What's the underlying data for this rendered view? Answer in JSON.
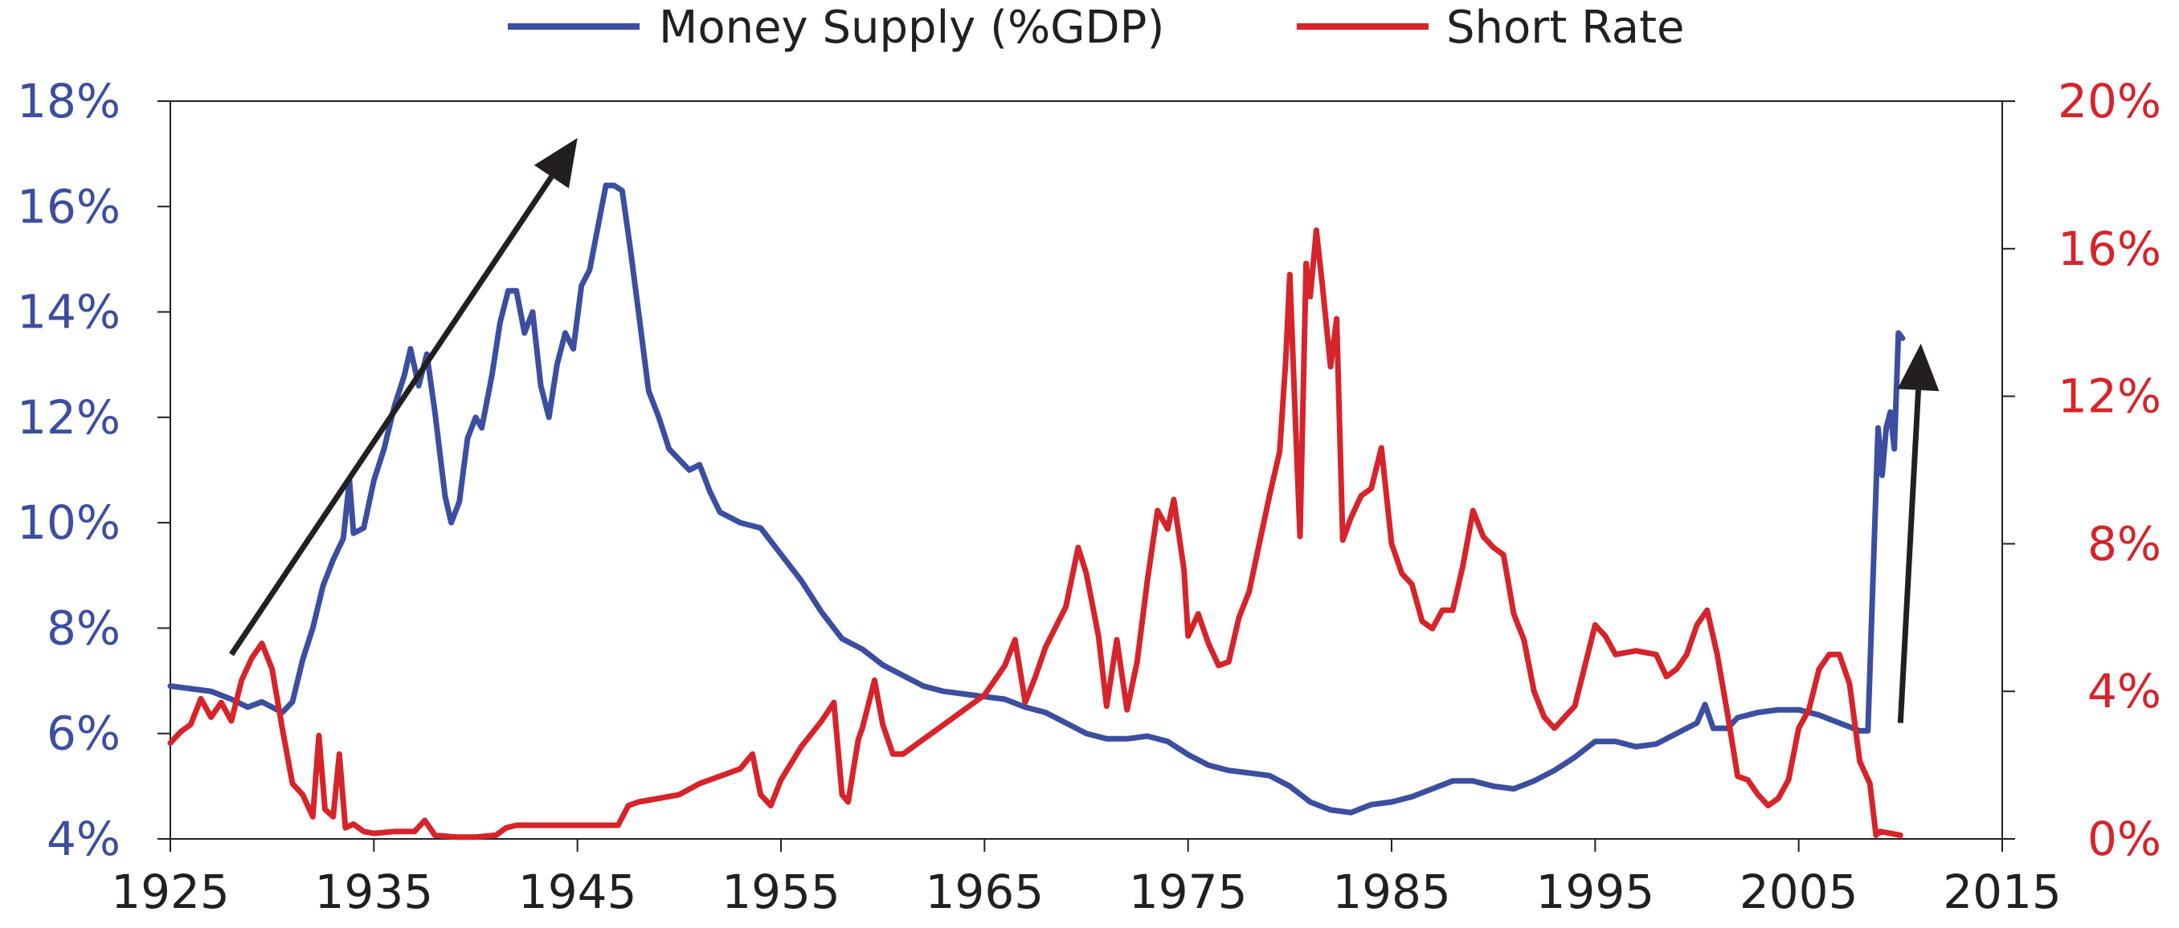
{
  "chart_data": {
    "type": "line",
    "title": "",
    "xlabel": "",
    "legend": {
      "placement": "top-center"
    },
    "grid": false,
    "x_axis": {
      "range": [
        1925,
        2015
      ],
      "ticks": [
        "1925",
        "1935",
        "1945",
        "1955",
        "1965",
        "1975",
        "1985",
        "1995",
        "2005",
        "2015"
      ]
    },
    "y_left": {
      "range": [
        4,
        18
      ],
      "ticks": [
        "4%",
        "6%",
        "8%",
        "10%",
        "12%",
        "14%",
        "16%",
        "18%"
      ],
      "color": "#3b4ea0"
    },
    "y_right": {
      "range": [
        0,
        20
      ],
      "ticks": [
        "0%",
        "4%",
        "8%",
        "12%",
        "16%",
        "20%"
      ],
      "color": "#d7232a"
    },
    "series": [
      {
        "name": "Money Supply (%GDP)",
        "axis": "left",
        "color": "#3b4ea0",
        "points": [
          [
            1925,
            6.9
          ],
          [
            1926,
            6.85
          ],
          [
            1927,
            6.8
          ],
          [
            1928,
            6.65
          ],
          [
            1928.8,
            6.5
          ],
          [
            1929.5,
            6.6
          ],
          [
            1930.5,
            6.4
          ],
          [
            1931,
            6.6
          ],
          [
            1931.5,
            7.4
          ],
          [
            1932,
            8.0
          ],
          [
            1932.5,
            8.8
          ],
          [
            1933,
            9.3
          ],
          [
            1933.5,
            9.7
          ],
          [
            1933.8,
            10.8
          ],
          [
            1934,
            9.8
          ],
          [
            1934.5,
            9.9
          ],
          [
            1935,
            10.8
          ],
          [
            1935.5,
            11.4
          ],
          [
            1936,
            12.2
          ],
          [
            1936.5,
            12.8
          ],
          [
            1936.8,
            13.3
          ],
          [
            1937.2,
            12.6
          ],
          [
            1937.6,
            13.2
          ],
          [
            1938,
            12.1
          ],
          [
            1938.5,
            10.5
          ],
          [
            1938.8,
            10.0
          ],
          [
            1939.2,
            10.4
          ],
          [
            1939.6,
            11.6
          ],
          [
            1940,
            12.0
          ],
          [
            1940.3,
            11.8
          ],
          [
            1940.8,
            12.8
          ],
          [
            1941.2,
            13.8
          ],
          [
            1941.6,
            14.4
          ],
          [
            1942,
            14.4
          ],
          [
            1942.4,
            13.6
          ],
          [
            1942.8,
            14.0
          ],
          [
            1943.2,
            12.6
          ],
          [
            1943.6,
            12.0
          ],
          [
            1944,
            13.0
          ],
          [
            1944.4,
            13.6
          ],
          [
            1944.8,
            13.3
          ],
          [
            1945.2,
            14.5
          ],
          [
            1945.6,
            14.8
          ],
          [
            1946,
            15.6
          ],
          [
            1946.4,
            16.4
          ],
          [
            1946.8,
            16.4
          ],
          [
            1947.2,
            16.3
          ],
          [
            1947.6,
            15.2
          ],
          [
            1948,
            14.0
          ],
          [
            1948.5,
            12.5
          ],
          [
            1949,
            12.0
          ],
          [
            1949.5,
            11.4
          ],
          [
            1950,
            11.2
          ],
          [
            1950.5,
            11.0
          ],
          [
            1951,
            11.1
          ],
          [
            1951.5,
            10.6
          ],
          [
            1952,
            10.2
          ],
          [
            1953,
            10.0
          ],
          [
            1954,
            9.9
          ],
          [
            1955,
            9.4
          ],
          [
            1956,
            8.9
          ],
          [
            1957,
            8.3
          ],
          [
            1958,
            7.8
          ],
          [
            1959,
            7.6
          ],
          [
            1960,
            7.3
          ],
          [
            1961,
            7.1
          ],
          [
            1962,
            6.9
          ],
          [
            1963,
            6.8
          ],
          [
            1964,
            6.75
          ],
          [
            1965,
            6.7
          ],
          [
            1966,
            6.65
          ],
          [
            1967,
            6.5
          ],
          [
            1968,
            6.4
          ],
          [
            1969,
            6.2
          ],
          [
            1970,
            6.0
          ],
          [
            1971,
            5.9
          ],
          [
            1972,
            5.9
          ],
          [
            1973,
            5.95
          ],
          [
            1974,
            5.85
          ],
          [
            1975,
            5.6
          ],
          [
            1976,
            5.4
          ],
          [
            1977,
            5.3
          ],
          [
            1978,
            5.25
          ],
          [
            1979,
            5.2
          ],
          [
            1980,
            5.0
          ],
          [
            1981,
            4.7
          ],
          [
            1982,
            4.55
          ],
          [
            1983,
            4.5
          ],
          [
            1984,
            4.65
          ],
          [
            1985,
            4.7
          ],
          [
            1986,
            4.8
          ],
          [
            1987,
            4.95
          ],
          [
            1988,
            5.1
          ],
          [
            1989,
            5.1
          ],
          [
            1990,
            5.0
          ],
          [
            1991,
            4.95
          ],
          [
            1992,
            5.1
          ],
          [
            1993,
            5.3
          ],
          [
            1994,
            5.55
          ],
          [
            1995,
            5.85
          ],
          [
            1996,
            5.85
          ],
          [
            1997,
            5.75
          ],
          [
            1998,
            5.8
          ],
          [
            1999,
            6.0
          ],
          [
            2000,
            6.2
          ],
          [
            2000.4,
            6.55
          ],
          [
            2000.8,
            6.1
          ],
          [
            2001.5,
            6.1
          ],
          [
            2002,
            6.3
          ],
          [
            2003,
            6.4
          ],
          [
            2004,
            6.45
          ],
          [
            2005,
            6.45
          ],
          [
            2006,
            6.35
          ],
          [
            2007,
            6.2
          ],
          [
            2008,
            6.05
          ],
          [
            2008.4,
            6.05
          ],
          [
            2008.7,
            9.5
          ],
          [
            2008.9,
            11.8
          ],
          [
            2009.1,
            10.9
          ],
          [
            2009.3,
            11.8
          ],
          [
            2009.5,
            12.1
          ],
          [
            2009.7,
            11.4
          ],
          [
            2009.9,
            13.6
          ],
          [
            2010.1,
            13.5
          ]
        ]
      },
      {
        "name": "Short Rate",
        "axis": "right",
        "color": "#d7232a",
        "points": [
          [
            1925,
            2.6
          ],
          [
            1925.5,
            2.9
          ],
          [
            1926,
            3.1
          ],
          [
            1926.5,
            3.8
          ],
          [
            1927,
            3.3
          ],
          [
            1927.5,
            3.7
          ],
          [
            1928,
            3.2
          ],
          [
            1928.5,
            4.3
          ],
          [
            1929,
            4.9
          ],
          [
            1929.5,
            5.3
          ],
          [
            1930,
            4.6
          ],
          [
            1930.5,
            3.0
          ],
          [
            1931,
            1.5
          ],
          [
            1931.5,
            1.2
          ],
          [
            1932,
            0.6
          ],
          [
            1932.3,
            2.8
          ],
          [
            1932.6,
            0.8
          ],
          [
            1933,
            0.6
          ],
          [
            1933.3,
            2.3
          ],
          [
            1933.6,
            0.3
          ],
          [
            1934,
            0.4
          ],
          [
            1934.5,
            0.2
          ],
          [
            1935,
            0.15
          ],
          [
            1936,
            0.2
          ],
          [
            1937,
            0.2
          ],
          [
            1937.5,
            0.5
          ],
          [
            1938,
            0.1
          ],
          [
            1939,
            0.05
          ],
          [
            1940,
            0.05
          ],
          [
            1941,
            0.1
          ],
          [
            1941.5,
            0.3
          ],
          [
            1942,
            0.37
          ],
          [
            1947,
            0.37
          ],
          [
            1947.5,
            0.9
          ],
          [
            1948,
            1.0
          ],
          [
            1949,
            1.1
          ],
          [
            1950,
            1.2
          ],
          [
            1951,
            1.5
          ],
          [
            1952,
            1.7
          ],
          [
            1953,
            1.9
          ],
          [
            1953.6,
            2.3
          ],
          [
            1954,
            1.2
          ],
          [
            1954.5,
            0.9
          ],
          [
            1955,
            1.6
          ],
          [
            1956,
            2.5
          ],
          [
            1957,
            3.2
          ],
          [
            1957.6,
            3.7
          ],
          [
            1958,
            1.2
          ],
          [
            1958.3,
            1.0
          ],
          [
            1958.8,
            2.7
          ],
          [
            1959,
            3.0
          ],
          [
            1959.6,
            4.3
          ],
          [
            1960,
            3.1
          ],
          [
            1960.5,
            2.3
          ],
          [
            1961,
            2.3
          ],
          [
            1962,
            2.7
          ],
          [
            1963,
            3.1
          ],
          [
            1964,
            3.5
          ],
          [
            1965,
            3.9
          ],
          [
            1966,
            4.7
          ],
          [
            1966.5,
            5.4
          ],
          [
            1967,
            3.7
          ],
          [
            1967.5,
            4.4
          ],
          [
            1968,
            5.2
          ],
          [
            1969,
            6.3
          ],
          [
            1969.6,
            7.9
          ],
          [
            1970,
            7.2
          ],
          [
            1970.6,
            5.5
          ],
          [
            1971,
            3.6
          ],
          [
            1971.5,
            5.4
          ],
          [
            1972,
            3.5
          ],
          [
            1972.5,
            4.8
          ],
          [
            1973,
            7.0
          ],
          [
            1973.5,
            8.9
          ],
          [
            1974,
            8.4
          ],
          [
            1974.3,
            9.2
          ],
          [
            1974.8,
            7.3
          ],
          [
            1975,
            5.5
          ],
          [
            1975.5,
            6.1
          ],
          [
            1976,
            5.3
          ],
          [
            1976.5,
            4.7
          ],
          [
            1977,
            4.8
          ],
          [
            1977.5,
            6.0
          ],
          [
            1978,
            6.7
          ],
          [
            1978.5,
            8.0
          ],
          [
            1979,
            9.3
          ],
          [
            1979.5,
            10.5
          ],
          [
            1979.8,
            13.0
          ],
          [
            1980,
            15.3
          ],
          [
            1980.3,
            11.0
          ],
          [
            1980.5,
            8.2
          ],
          [
            1980.8,
            15.6
          ],
          [
            1981,
            14.7
          ],
          [
            1981.3,
            16.5
          ],
          [
            1981.6,
            15.0
          ],
          [
            1982,
            12.8
          ],
          [
            1982.3,
            14.1
          ],
          [
            1982.6,
            8.1
          ],
          [
            1983,
            8.7
          ],
          [
            1983.5,
            9.3
          ],
          [
            1984,
            9.5
          ],
          [
            1984.5,
            10.6
          ],
          [
            1985,
            8.0
          ],
          [
            1985.5,
            7.2
          ],
          [
            1986,
            6.9
          ],
          [
            1986.5,
            5.9
          ],
          [
            1987,
            5.7
          ],
          [
            1987.5,
            6.2
          ],
          [
            1988,
            6.2
          ],
          [
            1988.5,
            7.4
          ],
          [
            1989,
            8.9
          ],
          [
            1989.5,
            8.2
          ],
          [
            1990,
            7.9
          ],
          [
            1990.5,
            7.7
          ],
          [
            1991,
            6.1
          ],
          [
            1991.5,
            5.4
          ],
          [
            1992,
            4.0
          ],
          [
            1992.5,
            3.3
          ],
          [
            1993,
            3.0
          ],
          [
            1994,
            3.6
          ],
          [
            1994.5,
            4.7
          ],
          [
            1995,
            5.8
          ],
          [
            1995.5,
            5.5
          ],
          [
            1996,
            5.0
          ],
          [
            1997,
            5.1
          ],
          [
            1998,
            5.0
          ],
          [
            1998.5,
            4.4
          ],
          [
            1999,
            4.6
          ],
          [
            1999.5,
            5.0
          ],
          [
            2000,
            5.8
          ],
          [
            2000.5,
            6.2
          ],
          [
            2001,
            5.0
          ],
          [
            2001.5,
            3.4
          ],
          [
            2002,
            1.7
          ],
          [
            2002.5,
            1.6
          ],
          [
            2003,
            1.2
          ],
          [
            2003.5,
            0.9
          ],
          [
            2004,
            1.1
          ],
          [
            2004.5,
            1.6
          ],
          [
            2005,
            3.0
          ],
          [
            2005.5,
            3.5
          ],
          [
            2006,
            4.6
          ],
          [
            2006.5,
            5.0
          ],
          [
            2007,
            5.0
          ],
          [
            2007.5,
            4.2
          ],
          [
            2008,
            2.1
          ],
          [
            2008.5,
            1.5
          ],
          [
            2008.8,
            0.1
          ],
          [
            2009,
            0.2
          ],
          [
            2009.5,
            0.15
          ],
          [
            2010,
            0.1
          ]
        ]
      }
    ],
    "annotations": [
      {
        "type": "arrow",
        "from": [
          1928,
          7.5
        ],
        "to": [
          1945,
          17.3
        ],
        "axis": "left",
        "color": "#231f20"
      },
      {
        "type": "arrow",
        "from": [
          2010,
          6.2
        ],
        "to": [
          2011,
          13.4
        ],
        "axis": "left",
        "color": "#231f20"
      }
    ]
  }
}
